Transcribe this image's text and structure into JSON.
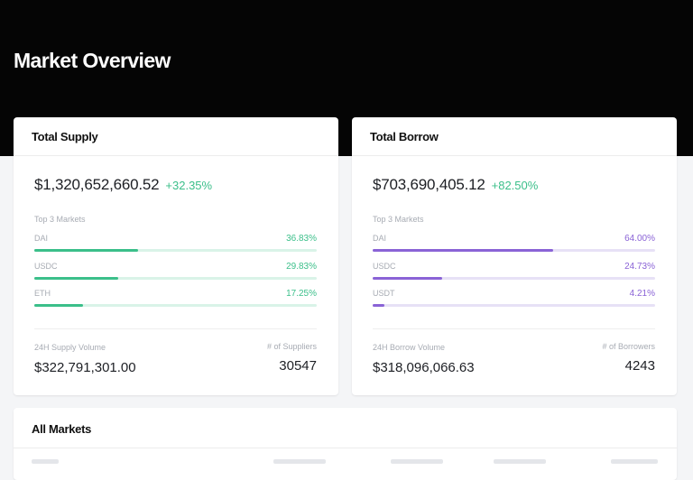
{
  "page": {
    "title": "Market Overview"
  },
  "supply": {
    "title": "Total Supply",
    "total": "$1,320,652,660.52",
    "change": "+32.35%",
    "top_label": "Top 3 Markets",
    "markets": [
      {
        "name": "DAI",
        "pct": "36.83%",
        "fraction": 0.3683
      },
      {
        "name": "USDC",
        "pct": "29.83%",
        "fraction": 0.2983
      },
      {
        "name": "ETH",
        "pct": "17.25%",
        "fraction": 0.1725
      }
    ],
    "volume_label": "24H Supply Volume",
    "volume_value": "$322,791,301.00",
    "count_label": "# of Suppliers",
    "count_value": "30547"
  },
  "borrow": {
    "title": "Total Borrow",
    "total": "$703,690,405.12",
    "change": "+82.50%",
    "top_label": "Top 3 Markets",
    "markets": [
      {
        "name": "DAI",
        "pct": "64.00%",
        "fraction": 0.64
      },
      {
        "name": "USDC",
        "pct": "24.73%",
        "fraction": 0.2473
      },
      {
        "name": "USDT",
        "pct": "4.21%",
        "fraction": 0.0421
      }
    ],
    "volume_label": "24H Borrow Volume",
    "volume_value": "$318,096,066.63",
    "count_label": "# of Borrowers",
    "count_value": "4243"
  },
  "all_markets": {
    "title": "All Markets"
  },
  "colors": {
    "hero_bg": "#050505",
    "supply_accent": "#3bbf8a",
    "borrow_accent": "#8a63d6"
  }
}
